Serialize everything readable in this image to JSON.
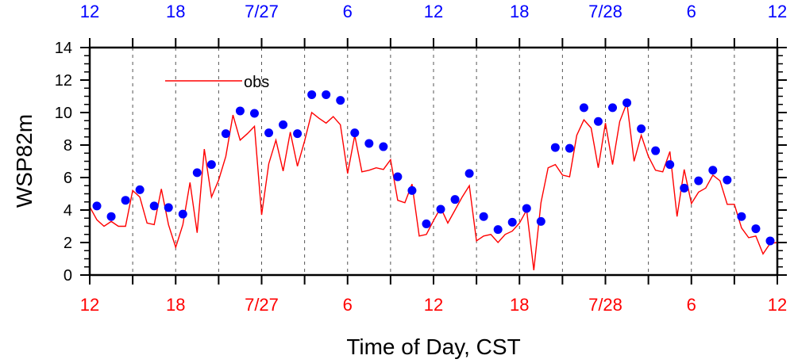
{
  "chart_data": {
    "type": "line",
    "title": "",
    "xlabel": "Time of Day, CST",
    "ylabel": "WSP82m",
    "ylim": [
      0,
      14
    ],
    "yticks": [
      0,
      2,
      4,
      6,
      8,
      10,
      12,
      14
    ],
    "xlim_hours": [
      0,
      48
    ],
    "x_tick_labels_bottom": [
      "12",
      "18",
      "7/27",
      "6",
      "12",
      "18",
      "7/28",
      "6",
      "12"
    ],
    "x_tick_labels_top": [
      "12",
      "18",
      "7/27",
      "6",
      "12",
      "18",
      "7/28",
      "6",
      "12"
    ],
    "x_tick_label_hours": [
      0,
      6,
      12,
      18,
      24,
      30,
      36,
      42,
      48
    ],
    "grid": "dashed vertical every 3 hours",
    "legend": {
      "placement": "top-left",
      "entries": [
        "obs"
      ]
    },
    "colors": {
      "obs": "#ff0000",
      "model": "#0000ff",
      "top_labels": "#0000ff",
      "bottom_labels": "#ff0000"
    },
    "series": [
      {
        "name": "obs",
        "style": "line",
        "x_step_hours": 0.5,
        "values": [
          4.2,
          3.4,
          3.0,
          3.3,
          3.0,
          3.0,
          5.2,
          4.8,
          3.2,
          3.1,
          5.3,
          3.1,
          1.7,
          3.1,
          5.7,
          2.6,
          7.75,
          4.8,
          5.85,
          7.3,
          9.85,
          8.3,
          8.7,
          9.15,
          3.7,
          6.85,
          8.3,
          6.4,
          8.8,
          6.7,
          8.25,
          10.0,
          9.65,
          9.35,
          9.75,
          9.25,
          6.25,
          8.6,
          6.35,
          6.45,
          6.6,
          6.5,
          7.1,
          4.6,
          4.45,
          5.6,
          2.4,
          2.5,
          3.35,
          4.15,
          3.2,
          4.0,
          4.8,
          5.5,
          2.1,
          2.4,
          2.5,
          2.0,
          2.5,
          2.7,
          3.2,
          4.0,
          0.3,
          4.45,
          6.6,
          6.8,
          6.15,
          6.05,
          8.6,
          9.55,
          9.05,
          6.6,
          9.35,
          6.8,
          9.45,
          10.6,
          7.0,
          8.6,
          7.3,
          6.45,
          6.35,
          7.6,
          3.6,
          6.5,
          4.4,
          5.1,
          5.35,
          6.15,
          5.8,
          4.35,
          4.35,
          2.9,
          2.3,
          2.4,
          1.3,
          1.95,
          2.0
        ]
      },
      {
        "name": "model",
        "style": "markers",
        "x_start_hours": 0.5,
        "x_step_hours": 1,
        "values": [
          4.25,
          3.6,
          4.6,
          5.25,
          4.25,
          4.15,
          3.75,
          6.3,
          6.8,
          8.7,
          10.1,
          9.95,
          8.75,
          9.25,
          8.7,
          11.1,
          11.1,
          10.75,
          8.75,
          8.1,
          7.9,
          6.05,
          5.2,
          3.15,
          4.05,
          4.65,
          6.25,
          3.6,
          2.8,
          3.25,
          4.1,
          3.3,
          7.85,
          7.8,
          10.3,
          9.45,
          10.3,
          10.6,
          9.0,
          7.65,
          6.8,
          5.35,
          5.8,
          6.45,
          5.85,
          3.6,
          2.85,
          2.1
        ]
      }
    ]
  }
}
